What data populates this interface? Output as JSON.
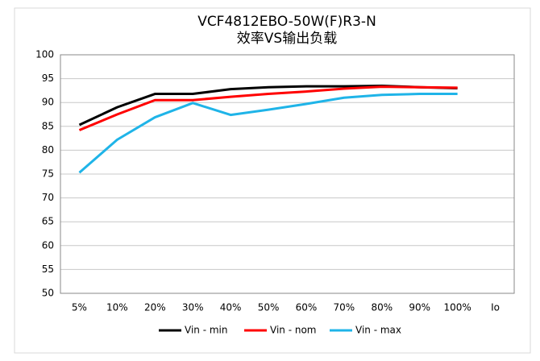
{
  "chart_data": {
    "type": "line",
    "title": "VCF4812EBO-50W(F)R3-N",
    "subtitle": "效率VS输出负载",
    "x_label": "Io",
    "categories": [
      "5%",
      "10%",
      "20%",
      "30%",
      "40%",
      "50%",
      "60%",
      "70%",
      "80%",
      "90%",
      "100%"
    ],
    "series": [
      {
        "name": "Vin - min",
        "color": "#000000",
        "values": [
          85.3,
          89.0,
          91.8,
          91.8,
          92.8,
          93.2,
          93.4,
          93.4,
          93.5,
          93.2,
          93.0
        ]
      },
      {
        "name": "Vin - nom",
        "color": "#ff0000",
        "values": [
          84.2,
          87.5,
          90.5,
          90.5,
          91.2,
          91.8,
          92.3,
          92.9,
          93.3,
          93.2,
          93.1
        ]
      },
      {
        "name": "Vin - max",
        "color": "#1fb4e8",
        "values": [
          75.3,
          82.2,
          86.9,
          89.9,
          87.4,
          88.5,
          89.7,
          91.0,
          91.6,
          91.8,
          91.8
        ]
      }
    ],
    "ylim": [
      50,
      100
    ],
    "yticks": [
      50,
      55,
      60,
      65,
      70,
      75,
      80,
      85,
      90,
      95,
      100
    ],
    "grid": true,
    "legend": "bottom"
  }
}
